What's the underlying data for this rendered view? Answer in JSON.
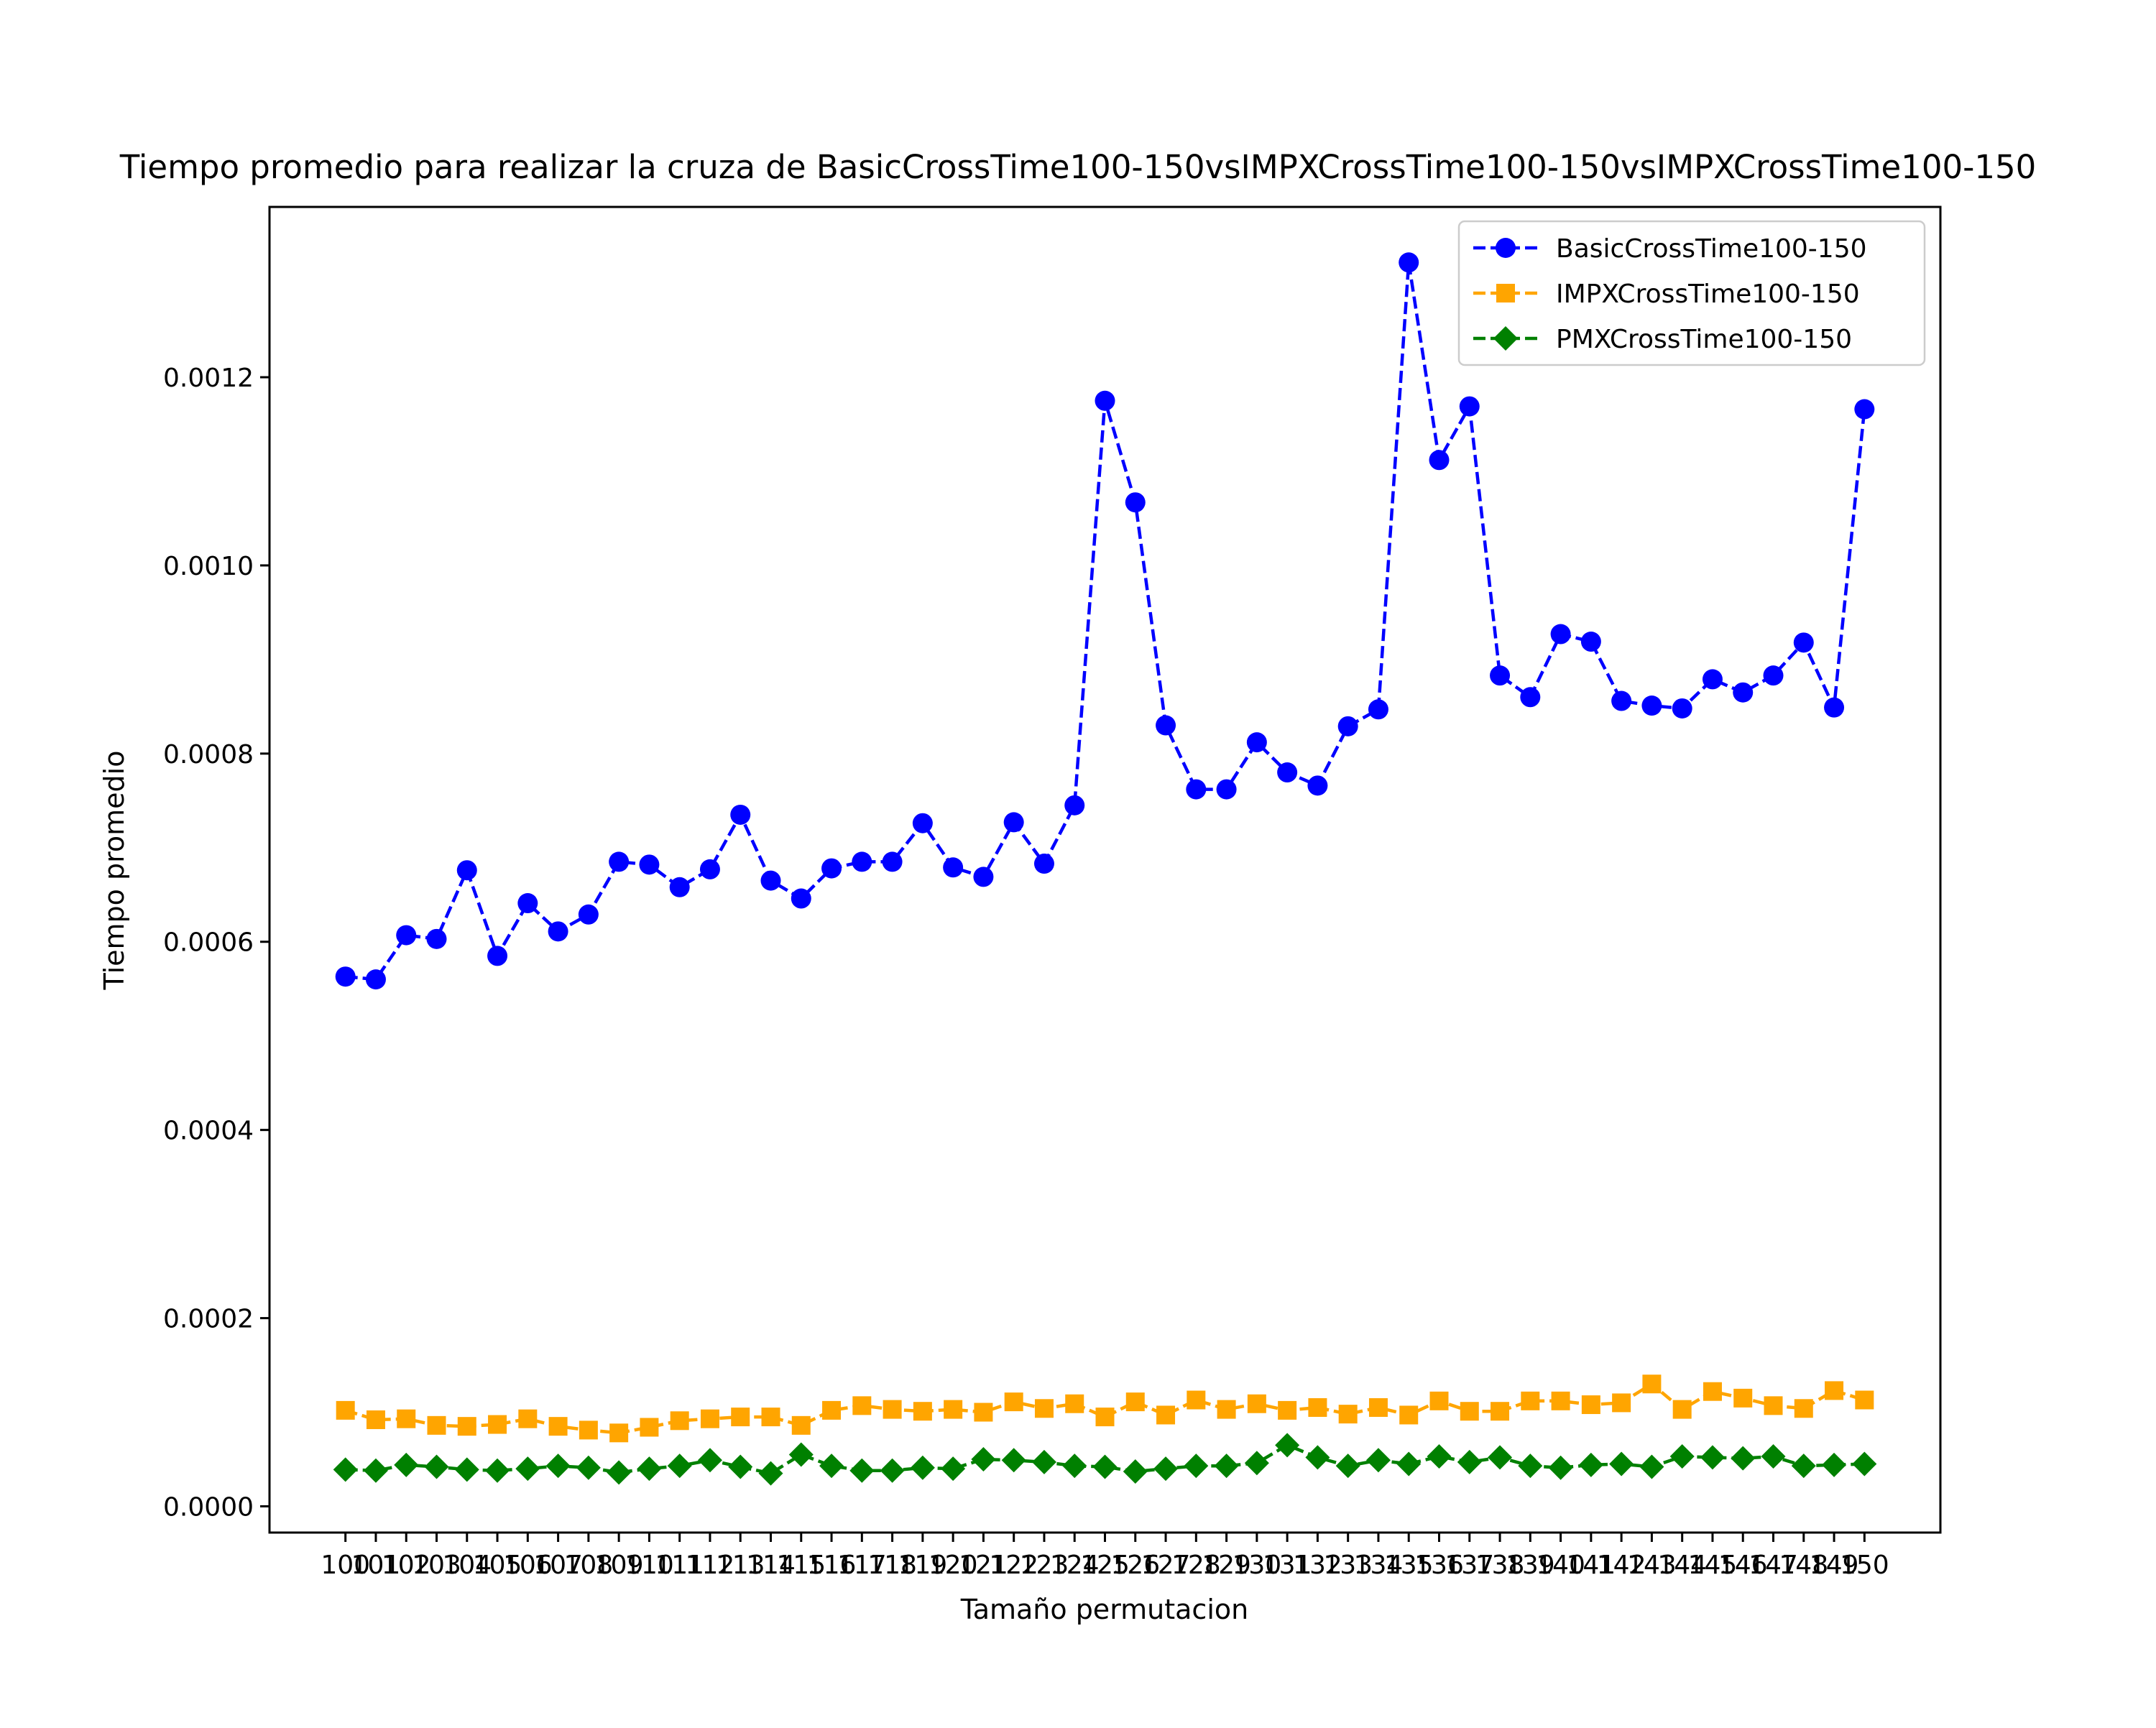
{
  "chart_data": {
    "type": "line",
    "title": "Tiempo promedio para realizar la cruza de BasicCrossTime100-150vsIMPXCrossTime100-150vsIMPXCrossTime100-150",
    "xlabel": "Tamaño permutacion",
    "ylabel": "Tiempo promedio",
    "ylim": [
      -2.79e-05,
      0.001381
    ],
    "yticks": [
      "0.0000",
      "0.0002",
      "0.0004",
      "0.0006",
      "0.0008",
      "0.0010",
      "0.0012"
    ],
    "ytick_values": [
      0,
      0.0002,
      0.0004,
      0.0006,
      0.0008,
      0.001,
      0.0012
    ],
    "grid": false,
    "legend_position": "top-right",
    "x": [
      100,
      101,
      102,
      103,
      104,
      105,
      106,
      107,
      108,
      109,
      110,
      111,
      112,
      113,
      114,
      115,
      116,
      117,
      118,
      119,
      120,
      121,
      122,
      123,
      124,
      125,
      126,
      127,
      128,
      129,
      130,
      131,
      132,
      133,
      134,
      135,
      136,
      137,
      138,
      139,
      140,
      141,
      142,
      143,
      144,
      145,
      146,
      147,
      148,
      149,
      150
    ],
    "series": [
      {
        "name": "BasicCrossTime100-150",
        "color": "#0000ff",
        "marker": "circle",
        "values": [
          0.000563,
          0.00056,
          0.000607,
          0.000603,
          0.000676,
          0.000585,
          0.000641,
          0.000611,
          0.000629,
          0.000685,
          0.000682,
          0.000658,
          0.000677,
          0.000735,
          0.000665,
          0.000646,
          0.000678,
          0.000685,
          0.000685,
          0.000726,
          0.000679,
          0.000669,
          0.000727,
          0.000683,
          0.000745,
          0.001175,
          0.001067,
          0.00083,
          0.000762,
          0.000762,
          0.000812,
          0.00078,
          0.000766,
          0.000829,
          0.000847,
          0.001322,
          0.001112,
          0.001169,
          0.000883,
          0.00086,
          0.000927,
          0.000919,
          0.000856,
          0.000851,
          0.000848,
          0.000879,
          0.000865,
          0.000883,
          0.000918,
          0.000849,
          0.001166
        ]
      },
      {
        "name": "IMPXCrossTime100-150",
        "color": "#ffa500",
        "marker": "square",
        "values": [
          0.000102,
          9.2e-05,
          9.3e-05,
          8.6e-05,
          8.5e-05,
          8.7e-05,
          9.3e-05,
          8.5e-05,
          8.1e-05,
          7.8e-05,
          8.4e-05,
          9.1e-05,
          9.3e-05,
          9.5e-05,
          9.5e-05,
          8.6e-05,
          0.000102,
          0.000107,
          0.000103,
          0.000101,
          0.000103,
          0.0001,
          0.000111,
          0.000104,
          0.000109,
          9.5e-05,
          0.000111,
          9.7e-05,
          0.000113,
          0.000103,
          0.000109,
          0.000102,
          0.000105,
          9.8e-05,
          0.000105,
          9.7e-05,
          0.000112,
          0.000101,
          0.000101,
          0.000112,
          0.000112,
          0.000108,
          0.00011,
          0.00013,
          0.000103,
          0.000122,
          0.000115,
          0.000107,
          0.000104,
          0.000123,
          0.000113
        ]
      },
      {
        "name": "PMXCrossTime100-150",
        "color": "#008000",
        "marker": "diamond",
        "values": [
          3.9e-05,
          3.8e-05,
          4.4e-05,
          4.2e-05,
          3.9e-05,
          3.8e-05,
          4e-05,
          4.3e-05,
          4.1e-05,
          3.6e-05,
          4e-05,
          4.3e-05,
          4.9e-05,
          4.2e-05,
          3.5e-05,
          5.5e-05,
          4.3e-05,
          3.8e-05,
          3.8e-05,
          4.1e-05,
          4e-05,
          5e-05,
          4.9e-05,
          4.7e-05,
          4.3e-05,
          4.2e-05,
          3.7e-05,
          4e-05,
          4.3e-05,
          4.3e-05,
          4.6e-05,
          6.5e-05,
          5.2e-05,
          4.3e-05,
          4.9e-05,
          4.5e-05,
          5.3e-05,
          4.7e-05,
          5.2e-05,
          4.3e-05,
          4.1e-05,
          4.4e-05,
          4.5e-05,
          4.2e-05,
          5.3e-05,
          5.2e-05,
          5.1e-05,
          5.3e-05,
          4.3e-05,
          4.4e-05,
          4.5e-05
        ]
      }
    ]
  }
}
